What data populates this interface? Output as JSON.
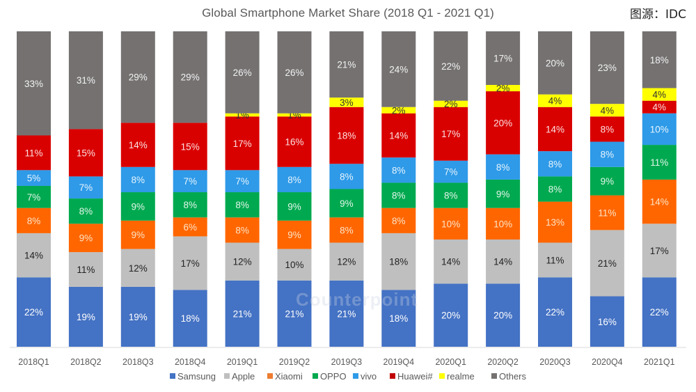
{
  "source_note": "图源：IDC",
  "watermark": "Counterpoint",
  "chart_data": {
    "type": "bar",
    "stacked": true,
    "normalized": true,
    "title": "Global Smartphone Market Share (2018 Q1 - 2021 Q1)",
    "xlabel": "",
    "ylabel": "",
    "ylim": [
      0,
      100
    ],
    "grid": false,
    "legend_position": "bottom",
    "categories": [
      "2018Q1",
      "2018Q2",
      "2018Q3",
      "2018Q4",
      "2019Q1",
      "2019Q2",
      "2019Q3",
      "2019Q4",
      "2020Q1",
      "2020Q2",
      "2020Q3",
      "2020Q4",
      "2021Q1"
    ],
    "series": [
      {
        "name": "Samsung",
        "color": "#4472C4",
        "label_color": "#FFFFFF",
        "values": [
          22,
          19,
          19,
          18,
          21,
          21,
          21,
          18,
          20,
          20,
          22,
          16,
          22
        ]
      },
      {
        "name": "Apple",
        "color": "#BFBFBF",
        "label_color": "#222222",
        "values": [
          14,
          11,
          12,
          17,
          12,
          10,
          12,
          18,
          14,
          14,
          11,
          21,
          17
        ]
      },
      {
        "name": "Xiaomi",
        "color": "#FF6600",
        "label_color": "#FCE4C8",
        "values": [
          8,
          9,
          9,
          6,
          8,
          9,
          8,
          8,
          10,
          10,
          13,
          11,
          14
        ]
      },
      {
        "name": "OPPO",
        "color": "#00A94F",
        "label_color": "#E6F6EC",
        "values": [
          7,
          8,
          9,
          8,
          8,
          9,
          9,
          8,
          8,
          9,
          8,
          9,
          11
        ]
      },
      {
        "name": "vivo",
        "color": "#2E9AE8",
        "label_color": "#E8F4FC",
        "values": [
          5,
          7,
          8,
          7,
          7,
          8,
          8,
          8,
          7,
          8,
          8,
          8,
          10
        ]
      },
      {
        "name": "Huawei#",
        "color": "#D90000",
        "label_color": "#FCE2E2",
        "values": [
          11,
          15,
          14,
          15,
          17,
          16,
          18,
          14,
          17,
          20,
          14,
          8,
          4
        ]
      },
      {
        "name": "realme",
        "color": "#FFFF00",
        "label_color": "#333333",
        "values": [
          0,
          0,
          0,
          0,
          1,
          1,
          3,
          2,
          2,
          2,
          4,
          4,
          4
        ]
      },
      {
        "name": "Others",
        "color": "#757171",
        "label_color": "#F2F2F2",
        "values": [
          33,
          31,
          29,
          29,
          26,
          26,
          21,
          24,
          22,
          17,
          20,
          23,
          18
        ]
      }
    ],
    "legend_swatch_colors": {
      "Samsung": "#4472C4",
      "Apple": "#BFBFBF",
      "Xiaomi": "#ED7D31",
      "OPPO": "#00A94F",
      "vivo": "#2E9AE8",
      "Huawei#": "#C00000",
      "realme": "#FFFF00",
      "Others": "#757171"
    }
  }
}
